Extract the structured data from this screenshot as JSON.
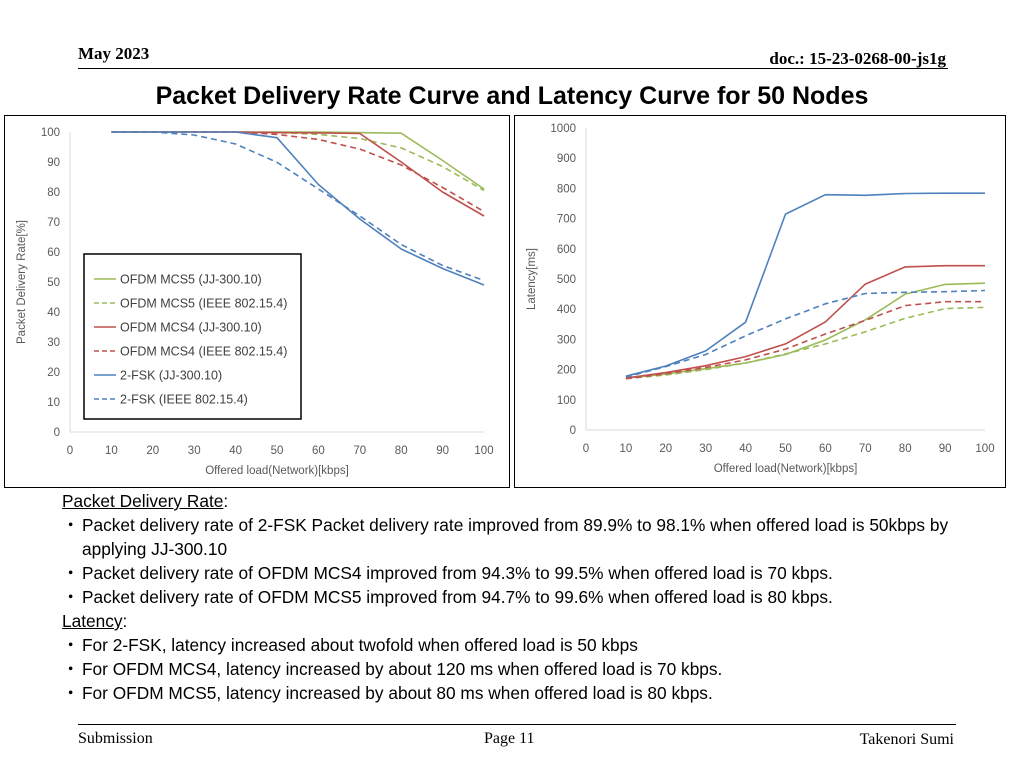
{
  "header": {
    "date": "May 2023",
    "doc": "doc.: 15-23-0268-00-js1g"
  },
  "title": "Packet Delivery Rate Curve and Latency Curve for 50 Nodes",
  "chart_data": [
    {
      "type": "line",
      "id": "pdr",
      "title": "",
      "xlabel": "Offered load(Network)[kbps]",
      "ylabel": "Packet Delivery Rate[%]",
      "x": [
        10,
        20,
        30,
        40,
        50,
        60,
        70,
        80,
        90,
        100
      ],
      "xticks": [
        0,
        10,
        20,
        30,
        40,
        50,
        60,
        70,
        80,
        90,
        100
      ],
      "yticks": [
        0,
        10,
        20,
        30,
        40,
        50,
        60,
        70,
        80,
        90,
        100
      ],
      "xlim": [
        0,
        100
      ],
      "ylim": [
        0,
        100
      ],
      "grid": false,
      "legend_position": "bottom-left",
      "series": [
        {
          "name": "OFDM MCS5 (JJ-300.10)",
          "color": "#9BBB59",
          "dash": false,
          "values": [
            100,
            100,
            100,
            100,
            100,
            100,
            99.8,
            99.6,
            90.5,
            81
          ]
        },
        {
          "name": "OFDM MCS5 (IEEE 802.15.4)",
          "color": "#9BBB59",
          "dash": true,
          "values": [
            100,
            100,
            100,
            100,
            99.8,
            99.2,
            97.8,
            94.7,
            88.5,
            80.5
          ]
        },
        {
          "name": "OFDM MCS4 (JJ-300.10)",
          "color": "#C0504D",
          "dash": false,
          "values": [
            100,
            100,
            100,
            100,
            99.8,
            99.7,
            99.5,
            90,
            80,
            72
          ]
        },
        {
          "name": "OFDM MCS4 (IEEE 802.15.4)",
          "color": "#C0504D",
          "dash": true,
          "values": [
            100,
            100,
            100,
            100,
            99.2,
            97.5,
            94.3,
            89,
            81.5,
            73.5
          ]
        },
        {
          "name": "2-FSK (JJ-300.10)",
          "color": "#4F81BD",
          "dash": false,
          "values": [
            100,
            100,
            100,
            100,
            98.1,
            82.5,
            71,
            61,
            54.5,
            49
          ]
        },
        {
          "name": "2-FSK (IEEE 802.15.4)",
          "color": "#4F81BD",
          "dash": true,
          "values": [
            100,
            100,
            99,
            96,
            89.9,
            81,
            72,
            62.5,
            55.5,
            50.5
          ]
        }
      ]
    },
    {
      "type": "line",
      "id": "lat",
      "title": "",
      "xlabel": "Offered load(Network)[kbps]",
      "ylabel": "Latency[ms]",
      "x": [
        10,
        20,
        30,
        40,
        50,
        60,
        70,
        80,
        90,
        100
      ],
      "xticks": [
        0,
        10,
        20,
        30,
        40,
        50,
        60,
        70,
        80,
        90,
        100
      ],
      "yticks": [
        0,
        100,
        200,
        300,
        400,
        500,
        600,
        700,
        800,
        900,
        1000
      ],
      "xlim": [
        0,
        100
      ],
      "ylim": [
        0,
        1000
      ],
      "grid": false,
      "legend_position": "none",
      "series": [
        {
          "name": "OFDM MCS5 (JJ-300.10)",
          "color": "#9BBB59",
          "dash": false,
          "values": [
            172,
            185,
            203,
            222,
            250,
            298,
            365,
            450,
            482,
            486
          ]
        },
        {
          "name": "OFDM MCS5 (IEEE 802.15.4)",
          "color": "#9BBB59",
          "dash": true,
          "values": [
            170,
            182,
            200,
            222,
            252,
            285,
            325,
            370,
            402,
            406
          ]
        },
        {
          "name": "OFDM MCS4 (JJ-300.10)",
          "color": "#C0504D",
          "dash": false,
          "values": [
            172,
            190,
            213,
            243,
            285,
            358,
            483,
            540,
            544,
            544
          ]
        },
        {
          "name": "OFDM MCS4 (IEEE 802.15.4)",
          "color": "#C0504D",
          "dash": true,
          "values": [
            170,
            186,
            207,
            232,
            268,
            318,
            363,
            412,
            425,
            425
          ]
        },
        {
          "name": "2-FSK (JJ-300.10)",
          "color": "#4F81BD",
          "dash": false,
          "values": [
            178,
            212,
            262,
            357,
            715,
            779,
            777,
            783,
            784,
            784
          ]
        },
        {
          "name": "2-FSK (IEEE 802.15.4)",
          "color": "#4F81BD",
          "dash": true,
          "values": [
            175,
            210,
            250,
            312,
            368,
            418,
            452,
            456,
            458,
            462
          ]
        }
      ]
    }
  ],
  "body": {
    "pdr_heading": "Packet Delivery Rate",
    "pdr_colon": ":",
    "bullet_mark": "・",
    "pdr_bullets": [
      "Packet delivery rate of 2-FSK Packet delivery rate improved from 89.9% to 98.1% when offered load is 50kbps by applying JJ-300.10",
      "Packet delivery rate of OFDM MCS4 improved from 94.3% to 99.5% when offered load is 70 kbps.",
      "Packet delivery rate of OFDM MCS5 improved from 94.7% to 99.6% when offered load is 80 kbps."
    ],
    "lat_heading": "Latency",
    "lat_colon": ":",
    "lat_bullets": [
      "For 2-FSK, latency increased about twofold when offered load is 50 kbps",
      "For OFDM MCS4, latency increased by about 120 ms when offered load is 70 kbps.",
      "For OFDM MCS5, latency increased by about 80 ms when offered load is 80 kbps."
    ]
  },
  "footer": {
    "left": "Submission",
    "page": "Page 11",
    "author": "Takenori Sumi"
  }
}
